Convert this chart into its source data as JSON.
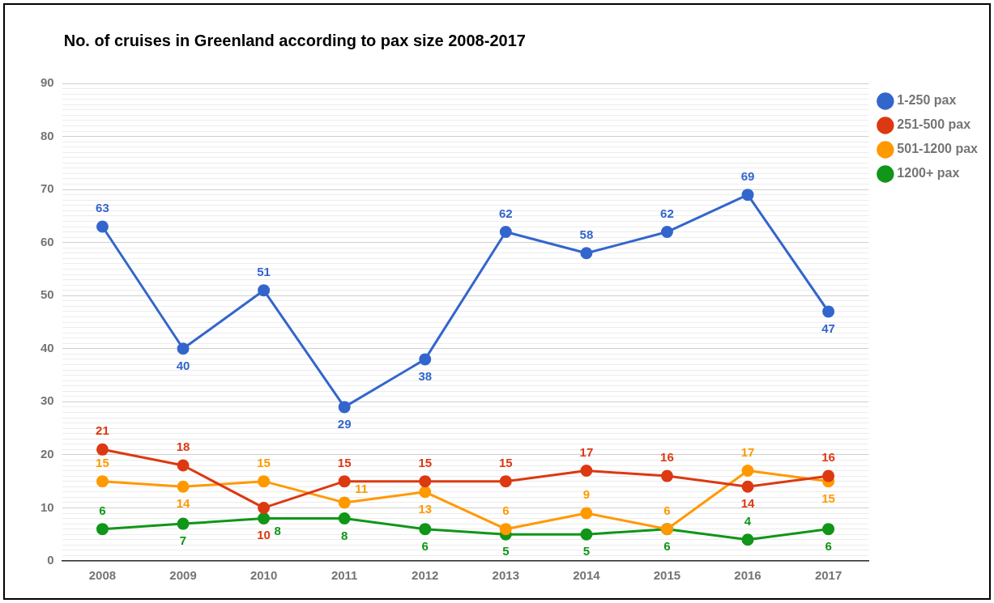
{
  "chart_data": {
    "type": "line",
    "title": "No. of cruises in Greenland according to pax size 2008-2017",
    "categories": [
      "2008",
      "2009",
      "2010",
      "2011",
      "2012",
      "2013",
      "2014",
      "2015",
      "2016",
      "2017"
    ],
    "series": [
      {
        "name": "1-250 pax",
        "color": "#3366cc",
        "values": [
          63,
          40,
          51,
          29,
          38,
          62,
          58,
          62,
          69,
          47
        ]
      },
      {
        "name": "251-500 pax",
        "color": "#dc3912",
        "values": [
          21,
          18,
          10,
          15,
          15,
          15,
          17,
          16,
          14,
          16
        ]
      },
      {
        "name": "501-1200 pax",
        "color": "#ff9900",
        "values": [
          15,
          14,
          15,
          11,
          13,
          6,
          9,
          6,
          17,
          15
        ]
      },
      {
        "name": "1200+ pax",
        "color": "#109618",
        "values": [
          6,
          7,
          8,
          8,
          6,
          5,
          5,
          6,
          4,
          6
        ]
      }
    ],
    "ylim": [
      0,
      90
    ],
    "yticks": [
      0,
      {
        "value": 1,
        "label": null
      },
      {
        "value": 2,
        "label": null
      },
      {
        "value": 3,
        "label": null
      },
      {
        "value": 4,
        "label": null
      },
      {
        "value": 5,
        "label": null
      },
      {
        "value": 6,
        "label": null
      },
      {
        "value": 7,
        "label": null
      },
      {
        "value": 8,
        "label": null
      },
      {
        "value": 9,
        "label": null
      },
      10,
      {
        "value": 11,
        "label": null
      },
      {
        "value": 12,
        "label": null
      },
      {
        "value": 13,
        "label": null
      },
      {
        "value": 14,
        "label": null
      },
      {
        "value": 15,
        "label": null
      },
      {
        "value": 16,
        "label": null
      },
      {
        "value": 17,
        "label": null
      },
      {
        "value": 18,
        "label": null
      },
      {
        "value": 19,
        "label": null
      },
      20,
      {
        "value": 21,
        "label": null
      },
      {
        "value": 22,
        "label": null
      },
      {
        "value": 23,
        "label": null
      },
      {
        "value": 24,
        "label": null
      },
      {
        "value": 25,
        "label": null
      },
      {
        "value": 26,
        "label": null
      },
      {
        "value": 27,
        "label": null
      },
      {
        "value": 28,
        "label": null
      },
      {
        "value": 29,
        "label": null
      },
      30,
      {
        "value": 31,
        "label": null
      },
      {
        "value": 32,
        "label": null
      },
      {
        "value": 33,
        "label": null
      },
      {
        "value": 34,
        "label": null
      },
      {
        "value": 35,
        "label": null
      },
      {
        "value": 36,
        "label": null
      },
      {
        "value": 37,
        "label": null
      },
      {
        "value": 38,
        "label": null
      },
      {
        "value": 39,
        "label": null
      },
      40,
      {
        "value": 41,
        "label": null
      },
      {
        "value": 42,
        "label": null
      },
      {
        "value": 43,
        "label": null
      },
      {
        "value": 44,
        "label": null
      },
      {
        "value": 45,
        "label": null
      },
      {
        "value": 46,
        "label": null
      },
      {
        "value": 47,
        "label": null
      },
      {
        "value": 48,
        "label": null
      },
      {
        "value": 49,
        "label": null
      },
      50,
      {
        "value": 51,
        "label": null
      },
      {
        "value": 52,
        "label": null
      },
      {
        "value": 53,
        "label": null
      },
      {
        "value": 54,
        "label": null
      },
      {
        "value": 55,
        "label": null
      },
      {
        "value": 56,
        "label": null
      },
      {
        "value": 57,
        "label": null
      },
      {
        "value": 58,
        "label": null
      },
      {
        "value": 59,
        "label": null
      },
      60,
      {
        "value": 61,
        "label": null
      },
      {
        "value": 62,
        "label": null
      },
      {
        "value": 63,
        "label": null
      },
      {
        "value": 64,
        "label": null
      },
      {
        "value": 65,
        "label": null
      },
      {
        "value": 66,
        "label": null
      },
      {
        "value": 67,
        "label": null
      },
      {
        "value": 68,
        "label": null
      },
      {
        "value": 69,
        "label": null
      },
      70,
      {
        "value": 71,
        "label": null
      },
      {
        "value": 72,
        "label": null
      },
      {
        "value": 73,
        "label": null
      },
      {
        "value": 74,
        "label": null
      },
      {
        "value": 75,
        "label": null
      },
      {
        "value": 76,
        "label": null
      },
      {
        "value": 77,
        "label": null
      },
      {
        "value": 78,
        "label": null
      },
      {
        "value": 79,
        "label": null
      },
      80,
      {
        "value": 81,
        "label": null
      },
      {
        "value": 82,
        "label": null
      },
      {
        "value": 83,
        "label": null
      },
      {
        "value": 84,
        "label": null
      },
      {
        "value": 85,
        "label": null
      },
      {
        "value": 86,
        "label": null
      },
      {
        "value": 87,
        "label": null
      },
      {
        "value": 88,
        "label": null
      },
      {
        "value": 89,
        "label": null
      },
      90
    ],
    "grid": "y",
    "legend": "right",
    "marker": "circle",
    "data_labels": true
  }
}
